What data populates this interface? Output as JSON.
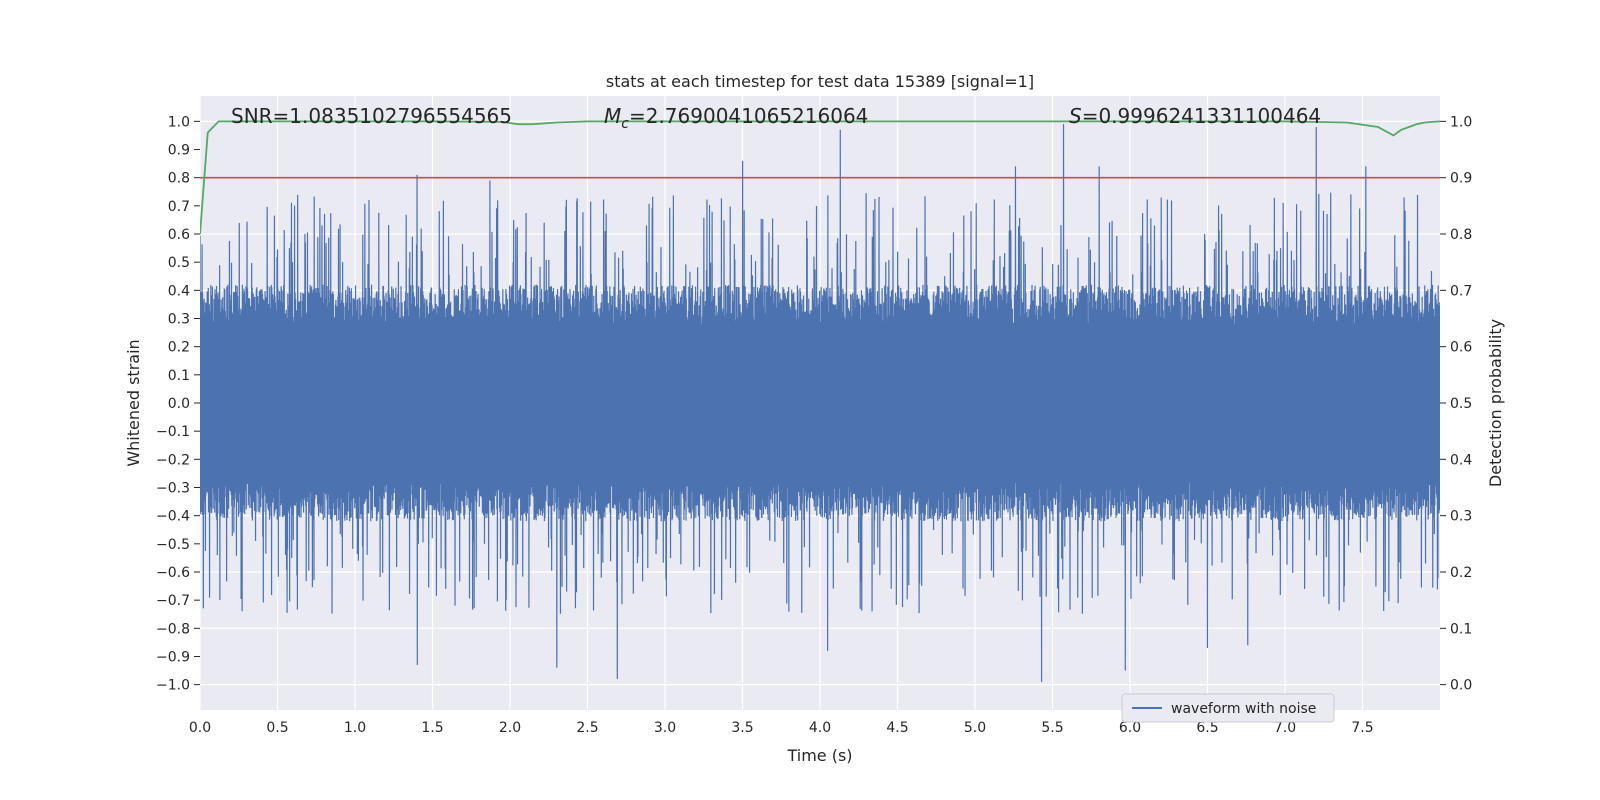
{
  "chart_data": {
    "type": "line",
    "title": "stats at each timestep for test data 15389 [signal=1]",
    "xlabel": "Time (s)",
    "ylabel_left": "Whitened strain",
    "ylabel_right": "Detection probability",
    "xlim": [
      0.0,
      8.0
    ],
    "ylim_left": [
      -1.09,
      1.09
    ],
    "ylim_right": [
      -0.045,
      1.045
    ],
    "x_ticks": [
      "0.0",
      "0.5",
      "1.0",
      "1.5",
      "2.0",
      "2.5",
      "3.0",
      "3.5",
      "4.0",
      "4.5",
      "5.0",
      "5.5",
      "6.0",
      "6.5",
      "7.0",
      "7.5"
    ],
    "y_left_ticks": [
      "1.0",
      "0.9",
      "0.8",
      "0.7",
      "0.6",
      "0.5",
      "0.4",
      "0.3",
      "0.2",
      "0.1",
      "0.0",
      "−0.1",
      "−0.2",
      "−0.3",
      "−0.4",
      "−0.5",
      "−0.6",
      "−0.7",
      "−0.8",
      "−0.9",
      "−1.0"
    ],
    "y_right_ticks": [
      "1.0",
      "0.9",
      "0.8",
      "0.7",
      "0.6",
      "0.5",
      "0.4",
      "0.3",
      "0.2",
      "0.1",
      "0.0"
    ],
    "grid": true,
    "annotations": {
      "snr": "SNR=1.0835102796554565",
      "mc_symbol": "M",
      "mc_sub": "c",
      "mc_value": "=2.7690041065216064",
      "s_symbol": "S",
      "s_value": "=0.9996241331100464"
    },
    "series": [
      {
        "name": "waveform with noise",
        "axis": "left",
        "color": "#4c72b0",
        "peak_spikes": [
          {
            "t": 1.4,
            "v": 0.81
          },
          {
            "t": 1.87,
            "v": 0.79
          },
          {
            "t": 3.5,
            "v": 0.86
          },
          {
            "t": 4.13,
            "v": 0.97
          },
          {
            "t": 5.26,
            "v": 0.84
          },
          {
            "t": 5.57,
            "v": 0.99
          },
          {
            "t": 5.8,
            "v": 0.84
          },
          {
            "t": 7.2,
            "v": 0.98
          },
          {
            "t": 7.52,
            "v": 0.84
          }
        ],
        "trough_spikes": [
          {
            "t": 1.4,
            "v": -0.93
          },
          {
            "t": 2.3,
            "v": -0.94
          },
          {
            "t": 2.69,
            "v": -0.98
          },
          {
            "t": 4.05,
            "v": -0.88
          },
          {
            "t": 5.43,
            "v": -0.99
          },
          {
            "t": 5.97,
            "v": -0.95
          },
          {
            "t": 6.5,
            "v": -0.87
          },
          {
            "t": 6.76,
            "v": -0.86
          }
        ]
      },
      {
        "name": "detection probability",
        "axis": "right",
        "color": "#55a868",
        "x": [
          0.0,
          0.05,
          0.12,
          0.2,
          1.0,
          1.5,
          1.95,
          2.05,
          2.15,
          2.3,
          2.5,
          3.0,
          4.0,
          5.0,
          6.0,
          7.0,
          7.4,
          7.6,
          7.7,
          7.75,
          7.8,
          7.85,
          7.9,
          7.95,
          8.0
        ],
        "y": [
          0.8,
          0.98,
          1.0,
          1.0,
          1.0,
          1.0,
          0.999,
          0.995,
          0.995,
          0.998,
          1.0,
          1.0,
          1.0,
          1.0,
          1.0,
          1.0,
          0.998,
          0.99,
          0.975,
          0.985,
          0.99,
          0.995,
          0.998,
          0.999,
          1.0
        ]
      },
      {
        "name": "threshold",
        "axis": "right",
        "color": "#c44e52",
        "y_value": 0.9
      }
    ],
    "legend": {
      "position": "bottom-right",
      "label": "waveform with noise",
      "color": "#4c72b0"
    }
  }
}
